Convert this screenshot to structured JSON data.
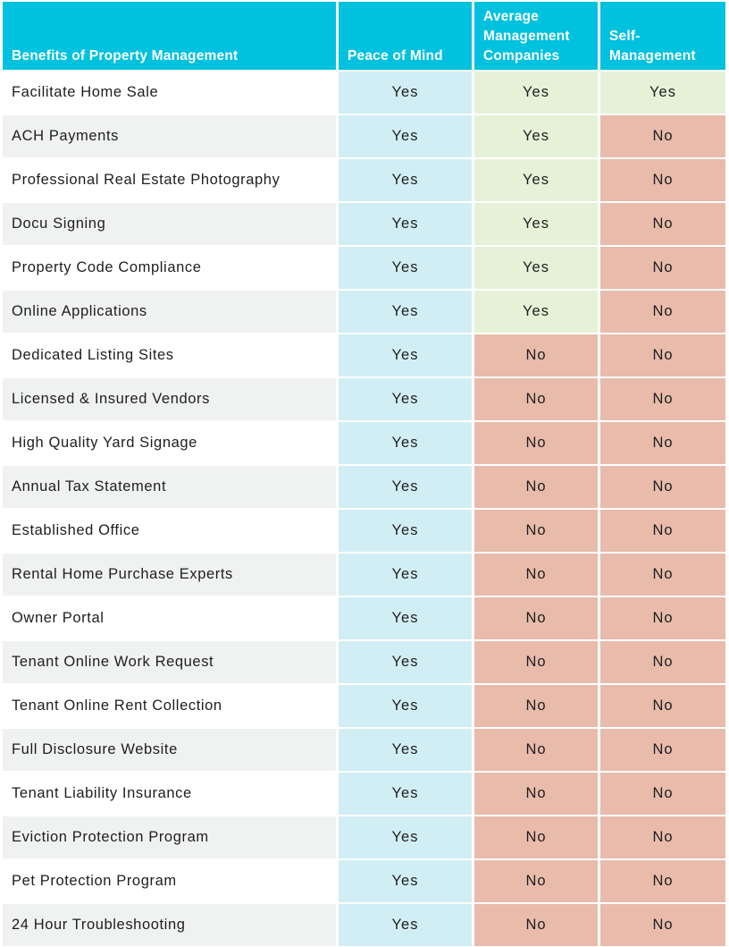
{
  "colors": {
    "header_bg": "#00c1de",
    "header_text": "#ffffff",
    "row_alt_bg": "#f0f1f1",
    "peace_of_mind_bg": "#d2eef5",
    "yes_bg": "#e6f2d8",
    "no_bg": "#e8bbab"
  },
  "header": {
    "col0": "Benefits of Property Management",
    "col1": "Peace of Mind",
    "col2": "Average Management Companies",
    "col3": "Self-Management"
  },
  "rows": [
    {
      "benefit": "Facilitate Home Sale",
      "peace_of_mind": "Yes",
      "average": "Yes",
      "self": "Yes"
    },
    {
      "benefit": "ACH Payments",
      "peace_of_mind": "Yes",
      "average": "Yes",
      "self": "No"
    },
    {
      "benefit": "Professional Real Estate Photography",
      "peace_of_mind": "Yes",
      "average": "Yes",
      "self": "No"
    },
    {
      "benefit": "Docu Signing",
      "peace_of_mind": "Yes",
      "average": "Yes",
      "self": "No"
    },
    {
      "benefit": "Property Code Compliance",
      "peace_of_mind": "Yes",
      "average": "Yes",
      "self": "No"
    },
    {
      "benefit": "Online Applications",
      "peace_of_mind": "Yes",
      "average": "Yes",
      "self": "No"
    },
    {
      "benefit": "Dedicated Listing Sites",
      "peace_of_mind": "Yes",
      "average": "No",
      "self": "No"
    },
    {
      "benefit": "Licensed & Insured Vendors",
      "peace_of_mind": "Yes",
      "average": "No",
      "self": "No"
    },
    {
      "benefit": "High Quality Yard Signage",
      "peace_of_mind": "Yes",
      "average": "No",
      "self": "No"
    },
    {
      "benefit": "Annual Tax Statement",
      "peace_of_mind": "Yes",
      "average": "No",
      "self": "No"
    },
    {
      "benefit": "Established Office",
      "peace_of_mind": "Yes",
      "average": "No",
      "self": "No"
    },
    {
      "benefit": "Rental Home Purchase Experts",
      "peace_of_mind": "Yes",
      "average": "No",
      "self": "No"
    },
    {
      "benefit": "Owner Portal",
      "peace_of_mind": "Yes",
      "average": "No",
      "self": "No"
    },
    {
      "benefit": "Tenant Online Work Request",
      "peace_of_mind": "Yes",
      "average": "No",
      "self": "No"
    },
    {
      "benefit": "Tenant Online Rent Collection",
      "peace_of_mind": "Yes",
      "average": "No",
      "self": "No"
    },
    {
      "benefit": "Full Disclosure Website",
      "peace_of_mind": "Yes",
      "average": "No",
      "self": "No"
    },
    {
      "benefit": "Tenant Liability Insurance",
      "peace_of_mind": "Yes",
      "average": "No",
      "self": "No"
    },
    {
      "benefit": "Eviction Protection Program",
      "peace_of_mind": "Yes",
      "average": "No",
      "self": "No"
    },
    {
      "benefit": "Pet Protection Program",
      "peace_of_mind": "Yes",
      "average": "No",
      "self": "No"
    },
    {
      "benefit": "24 Hour Troubleshooting",
      "peace_of_mind": "Yes",
      "average": "No",
      "self": "No"
    }
  ]
}
